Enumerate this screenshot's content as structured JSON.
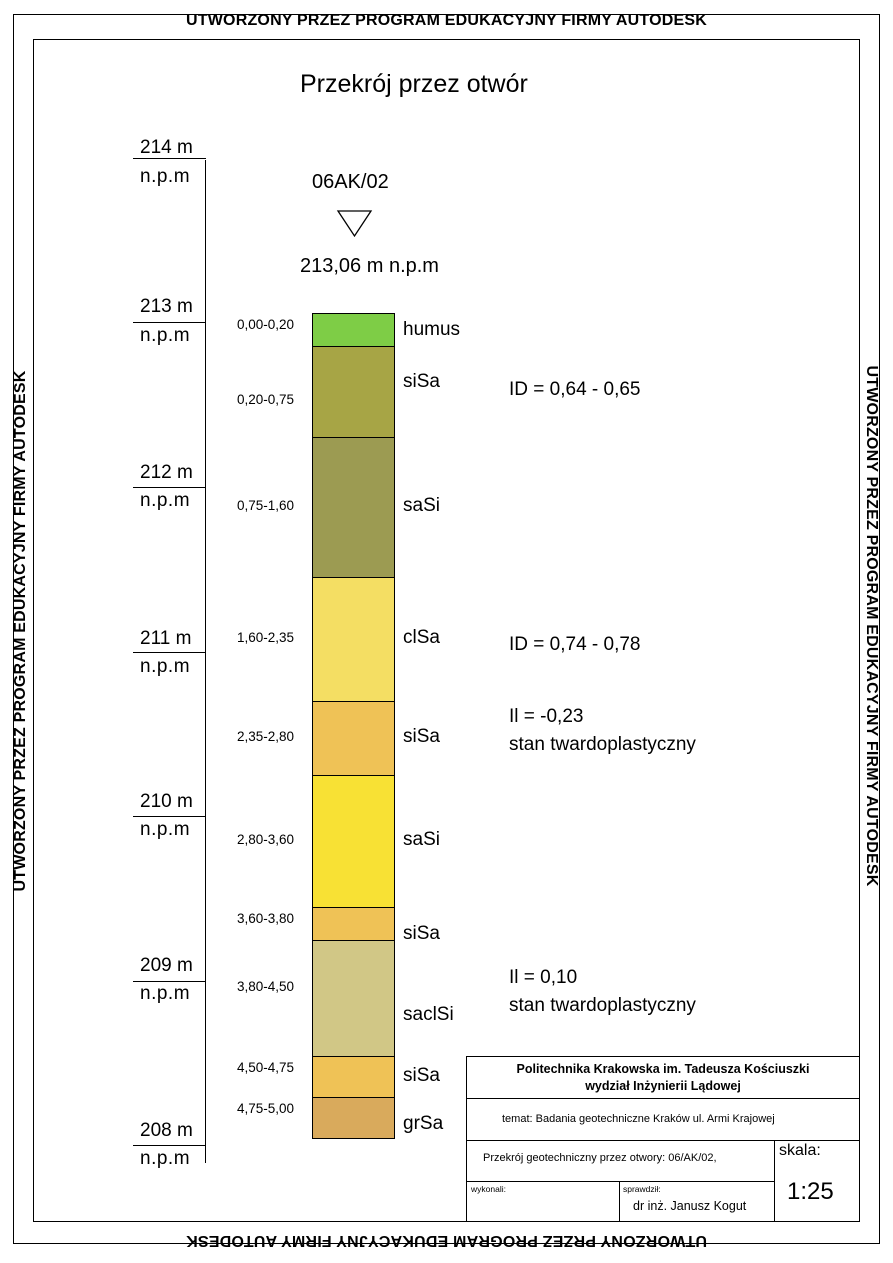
{
  "watermark": "UTWORZONY PRZEZ PROGRAM EDUKACYJNY FIRMY AUTODESK",
  "title": "Przekrój przez otwór",
  "borehole": {
    "name": "06AK/02",
    "elevation": "213,06 m n.p.m"
  },
  "scale_labels": [
    {
      "value": "214 m",
      "unit": "n.p.m"
    },
    {
      "value": "213 m",
      "unit": "n.p.m"
    },
    {
      "value": "212 m",
      "unit": "n.p.m"
    },
    {
      "value": "211 m",
      "unit": "n.p.m"
    },
    {
      "value": "210 m",
      "unit": "n.p.m"
    },
    {
      "value": "209 m",
      "unit": "n.p.m"
    },
    {
      "value": "208 m",
      "unit": "n.p.m"
    }
  ],
  "layers": [
    {
      "depth": "0,00-0,20",
      "from": 0.0,
      "to": 0.2,
      "code": "humus",
      "color": "#7ecd46"
    },
    {
      "depth": "0,20-0,75",
      "from": 0.2,
      "to": 0.75,
      "code": "siSa",
      "color": "#a7a545"
    },
    {
      "depth": "0,75-1,60",
      "from": 0.75,
      "to": 1.6,
      "code": "saSi",
      "color": "#9c9b52"
    },
    {
      "depth": "1,60-2,35",
      "from": 1.6,
      "to": 2.35,
      "code": "clSa",
      "color": "#f4de63"
    },
    {
      "depth": "2,35-2,80",
      "from": 2.35,
      "to": 2.8,
      "code": "siSa",
      "color": "#efc256"
    },
    {
      "depth": "2,80-3,60",
      "from": 2.8,
      "to": 3.6,
      "code": "saSi",
      "color": "#f8e134"
    },
    {
      "depth": "3,60-3,80",
      "from": 3.6,
      "to": 3.8,
      "code": "siSa",
      "color": "#efc256"
    },
    {
      "depth": "3,80-4,50",
      "from": 3.8,
      "to": 4.5,
      "code": "saclSi",
      "color": "#d1c786"
    },
    {
      "depth": "4,50-4,75",
      "from": 4.5,
      "to": 4.75,
      "code": "siSa",
      "color": "#efc256"
    },
    {
      "depth": "4,75-5,00",
      "from": 4.75,
      "to": 5.0,
      "code": "grSa",
      "color": "#d9aa5c"
    }
  ],
  "notes": {
    "id1": "ID = 0,64 - 0,65",
    "id2": "ID = 0,74 - 0,78",
    "il1": "Il = -0,23",
    "il1_state": "stan twardoplastyczny",
    "il2": "Il = 0,10",
    "il2_state": "stan twardoplastyczny"
  },
  "title_block": {
    "institution": "Politechnika Krakowska  im. Tadeusza Kościuszki",
    "faculty": "wydział Inżynierii Lądowej",
    "topic": "temat: Badania geotechniczne Kraków ul. Armi Krajowej",
    "drawing": "Przekrój geotechniczny przez otwory: 06/AK/02,",
    "scale_label": "skala:",
    "scale_value": "1:25",
    "made_by_label": "wykonali:",
    "checked_by_label": "sprawdził:",
    "checked_by": "dr inż. Janusz Kogut"
  }
}
